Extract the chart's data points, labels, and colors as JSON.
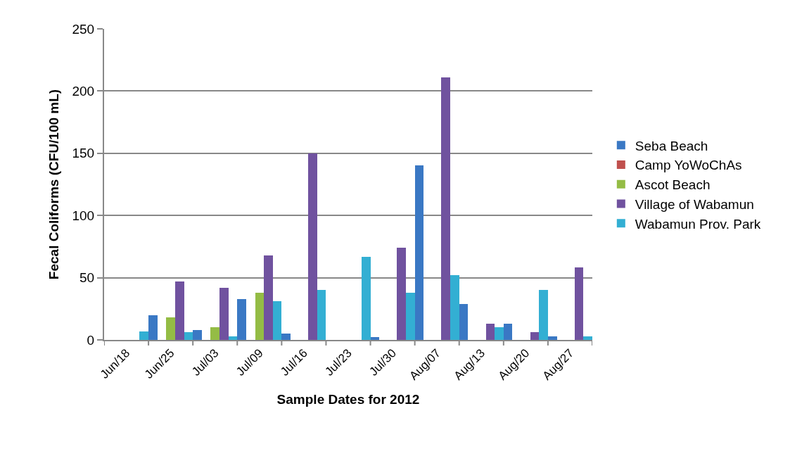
{
  "chart_data": {
    "type": "bar",
    "xlabel": "Sample Dates for 2012",
    "ylabel": "Fecal Coliforms (CFU/100 mL)",
    "categories": [
      "Jun/18",
      "Jun/25",
      "Jul/03",
      "Jul/09",
      "Jul/16",
      "Jul/23",
      "Jul/30",
      "Aug/07",
      "Aug/13",
      "Aug/20",
      "Aug/27"
    ],
    "series": [
      {
        "name": "Seba Beach",
        "color": "#3a78c4",
        "values": [
          null,
          20,
          8,
          33,
          5,
          null,
          2,
          140,
          29,
          13,
          3
        ]
      },
      {
        "name": "Camp YoWoChAs",
        "color": "#c0504d",
        "values": [
          null,
          null,
          null,
          null,
          null,
          null,
          null,
          null,
          null,
          null,
          null
        ]
      },
      {
        "name": "Ascot Beach",
        "color": "#94bc45",
        "values": [
          null,
          18,
          10,
          38,
          null,
          null,
          null,
          null,
          null,
          null,
          null
        ]
      },
      {
        "name": "Village of Wabamun",
        "color": "#70529f",
        "values": [
          null,
          47,
          42,
          68,
          150,
          null,
          74,
          211,
          13,
          6,
          58
        ]
      },
      {
        "name": "Wabamun Prov. Park",
        "color": "#33afd3",
        "values": [
          7,
          6,
          3,
          31,
          40,
          67,
          38,
          52,
          10,
          40,
          3
        ]
      }
    ],
    "ylim": [
      0,
      250
    ],
    "yticks": [
      0,
      50,
      100,
      150,
      200,
      250
    ],
    "grid": "y",
    "legend": "right"
  }
}
